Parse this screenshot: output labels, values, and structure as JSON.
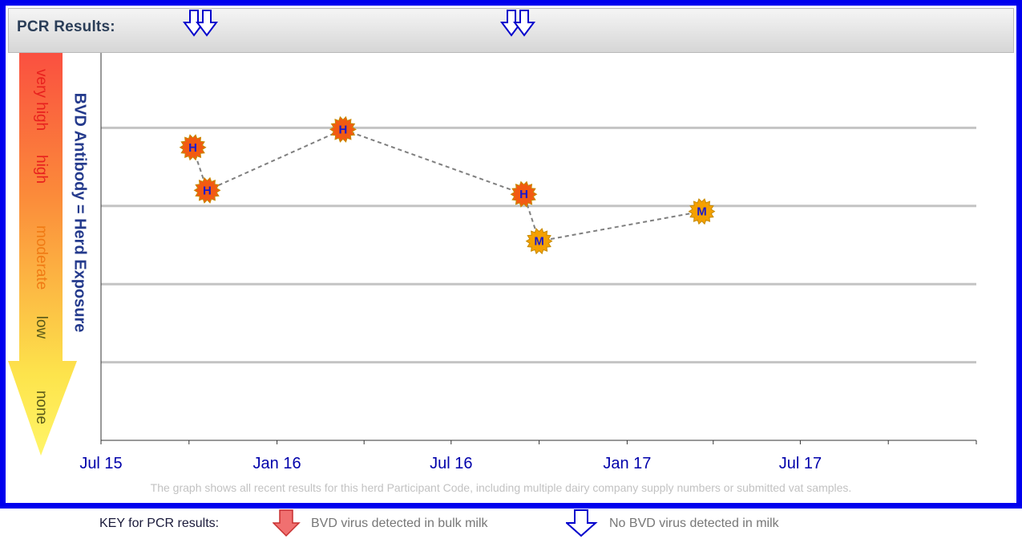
{
  "header": {
    "pcr_label": "PCR Results:"
  },
  "pcr_markers": [
    {
      "date": "2015-10-20",
      "result": "no-virus",
      "count": 2
    },
    {
      "date": "2016-09-15",
      "result": "no-virus",
      "count": 2
    }
  ],
  "levels": [
    {
      "label": "very high",
      "color": "#e8201e"
    },
    {
      "label": "high",
      "color": "#e8201e"
    },
    {
      "label": "moderate",
      "color": "#f07a14"
    },
    {
      "label": "low",
      "color": "#5a5a1a"
    },
    {
      "label": "none",
      "color": "#5a5a1a"
    }
  ],
  "chart_data": {
    "type": "line",
    "ylabel": "BVD Antibody  =  Herd Exposure",
    "x_ticks": [
      "Jul 15",
      "Jan 16",
      "Jul 16",
      "Jan 17",
      "Jul 17"
    ],
    "xlim": [
      "2015-07-01",
      "2018-01-01"
    ],
    "y_categories": [
      "none",
      "low",
      "moderate",
      "high",
      "very high"
    ],
    "ylim": [
      0,
      5
    ],
    "points": [
      {
        "date": "2015-10-05",
        "y": 3.75,
        "letter": "H",
        "level": "high"
      },
      {
        "date": "2015-10-20",
        "y": 3.2,
        "letter": "H",
        "level": "high"
      },
      {
        "date": "2016-03-10",
        "y": 3.98,
        "letter": "H",
        "level": "high"
      },
      {
        "date": "2016-09-15",
        "y": 3.15,
        "letter": "H",
        "level": "high"
      },
      {
        "date": "2016-10-01",
        "y": 2.55,
        "letter": "M",
        "level": "moderate"
      },
      {
        "date": "2017-03-20",
        "y": 2.93,
        "letter": "M",
        "level": "moderate"
      }
    ],
    "grid": true
  },
  "footnote": "The graph shows all recent results for this herd Participant Code, including multiple dairy company supply numbers or submitted vat samples.",
  "key": {
    "title": "KEY for PCR results:",
    "detected": "BVD virus detected in bulk milk",
    "not_detected": "No BVD virus detected in milk"
  },
  "colors": {
    "frame": "#0000ee",
    "high_point": "#f25a12",
    "moderate_point": "#f5a000",
    "line": "#7f7f7f",
    "detected_arrow": "#f07070",
    "not_detected_arrow": "#0000cc"
  }
}
